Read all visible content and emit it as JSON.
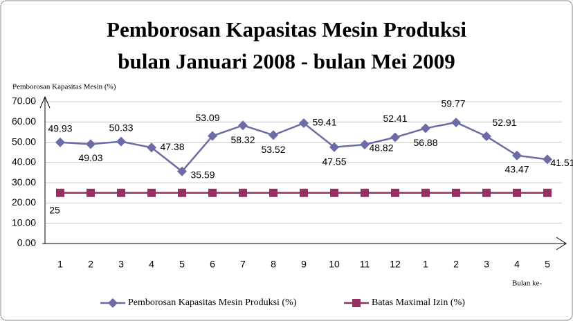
{
  "chart_data": {
    "type": "line",
    "title": "Pemborosan Kapasitas Mesin Produksi",
    "subtitle": "bulan Januari 2008 - bulan Mei 2009",
    "y_label": "Pemborosan Kapasitas Mesin (%)",
    "x_label": "Bulan ke-",
    "categories": [
      "1",
      "2",
      "3",
      "4",
      "5",
      "6",
      "7",
      "8",
      "9",
      "10",
      "11",
      "12",
      "1",
      "2",
      "3",
      "4",
      "5"
    ],
    "series": [
      {
        "name": "Pemborosan Kapasitas Mesin  Produksi (%)",
        "color": "#6b6ba6",
        "marker": "diamond",
        "values": [
          49.93,
          49.03,
          50.33,
          47.38,
          35.59,
          53.09,
          58.32,
          53.52,
          59.41,
          47.55,
          48.82,
          52.41,
          56.88,
          59.77,
          52.91,
          43.47,
          41.51
        ]
      },
      {
        "name": "Batas Maximal Izin (%)",
        "color": "#953160",
        "marker": "square",
        "values": [
          25,
          25,
          25,
          25,
          25,
          25,
          25,
          25,
          25,
          25,
          25,
          25,
          25,
          25,
          25,
          25,
          25
        ],
        "value_labels": [
          "25",
          null,
          null,
          null,
          null,
          null,
          null,
          null,
          null,
          null,
          null,
          null,
          null,
          null,
          null,
          null,
          null
        ]
      }
    ],
    "ylim": [
      0,
      70
    ],
    "yticks": [
      {
        "value": 0,
        "label": "0.00"
      },
      {
        "value": 10,
        "label": "10.00"
      },
      {
        "value": 20,
        "label": "20.00"
      },
      {
        "value": 30,
        "label": "30.00"
      },
      {
        "value": 40,
        "label": "40.00"
      },
      {
        "value": 50,
        "label": "50.00"
      },
      {
        "value": 60,
        "label": "60.00"
      },
      {
        "value": 70,
        "label": "70.00"
      }
    ],
    "grid": true,
    "legend": "bottom"
  }
}
